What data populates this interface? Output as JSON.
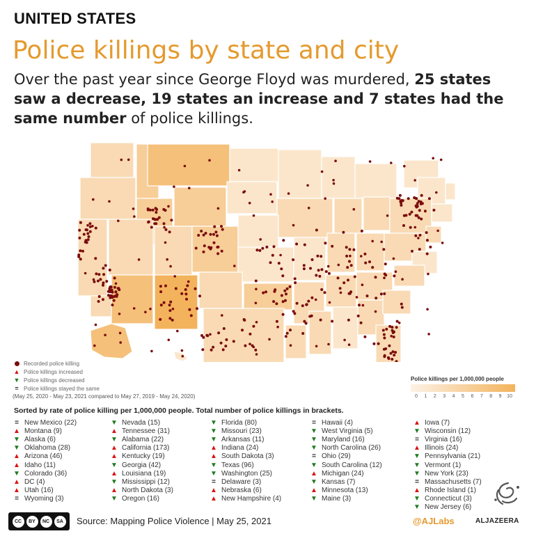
{
  "header": {
    "eyebrow": "UNITED STATES",
    "title": "Police killings by state and city",
    "subtitle_pre": "Over the past year since George Floyd was murdered, ",
    "subtitle_bold1": "25 states saw a decrease, 19 states an increase and 7 states had the same number",
    "subtitle_post": " of police killings."
  },
  "map_legend": {
    "dot_label": "Recorded police killing",
    "up_label": "Police killings increased",
    "down_label": "Police killings decreased",
    "same_label": "Police killings stayed the same",
    "period": "(May 25, 2020 - May 23, 2021 compared to May 27, 2019 - May 24, 2020)"
  },
  "scale": {
    "label": "Police killings per 1,000,000 people",
    "ticks": [
      "0",
      "1",
      "2",
      "3",
      "4",
      "5",
      "6",
      "7",
      "8",
      "9",
      "10"
    ],
    "min_color": "#fdf2e6",
    "max_color": "#f3b35c"
  },
  "sort_note": "Sorted by rate of police killing per 1,000,000 people. Total number of police killings in brackets.",
  "states": [
    [
      {
        "t": "same",
        "label": "New Mexico (22)"
      },
      {
        "t": "up",
        "label": "Montana (9)"
      },
      {
        "t": "down",
        "label": "Alaska (6)"
      },
      {
        "t": "down",
        "label": "Oklahoma (28)"
      },
      {
        "t": "up",
        "label": "Arizona (46)"
      },
      {
        "t": "up",
        "label": "Idaho (11)"
      },
      {
        "t": "down",
        "label": "Colorado (36)"
      },
      {
        "t": "up",
        "label": "DC (4)"
      },
      {
        "t": "up",
        "label": "Utah (16)"
      },
      {
        "t": "same",
        "label": "Wyoming (3)"
      }
    ],
    [
      {
        "t": "down",
        "label": "Nevada (15)"
      },
      {
        "t": "up",
        "label": "Tennessee (31)"
      },
      {
        "t": "down",
        "label": "Alabama (22)"
      },
      {
        "t": "up",
        "label": "California (173)"
      },
      {
        "t": "up",
        "label": "Kentucky (19)"
      },
      {
        "t": "down",
        "label": "Georgia (42)"
      },
      {
        "t": "up",
        "label": "Louisiana (19)"
      },
      {
        "t": "down",
        "label": "Mississippi (12)"
      },
      {
        "t": "up",
        "label": "North Dakota (3)"
      },
      {
        "t": "down",
        "label": "Oregon (16)"
      }
    ],
    [
      {
        "t": "down",
        "label": "Florida (80)"
      },
      {
        "t": "down",
        "label": "Missouri (23)"
      },
      {
        "t": "down",
        "label": "Arkansas (11)"
      },
      {
        "t": "up",
        "label": "Indiana (24)"
      },
      {
        "t": "up",
        "label": "South Dakota (3)"
      },
      {
        "t": "down",
        "label": "Texas (96)"
      },
      {
        "t": "down",
        "label": "Washington (25)"
      },
      {
        "t": "same",
        "label": "Delaware (3)"
      },
      {
        "t": "up",
        "label": "Nebraska (6)"
      },
      {
        "t": "up",
        "label": "New Hampshire (4)"
      }
    ],
    [
      {
        "t": "same",
        "label": "Hawaii (4)"
      },
      {
        "t": "down",
        "label": "West Virginia (5)"
      },
      {
        "t": "down",
        "label": "Maryland (16)"
      },
      {
        "t": "down",
        "label": "North Carolina (26)"
      },
      {
        "t": "same",
        "label": "Ohio (29)"
      },
      {
        "t": "down",
        "label": "South Carolina (12)"
      },
      {
        "t": "up",
        "label": "Michigan (24)"
      },
      {
        "t": "down",
        "label": "Kansas (7)"
      },
      {
        "t": "up",
        "label": "Minnesota (13)"
      },
      {
        "t": "down",
        "label": "Maine (3)"
      }
    ],
    [
      {
        "t": "up",
        "label": "Iowa (7)"
      },
      {
        "t": "down",
        "label": "Wisconsin (12)"
      },
      {
        "t": "same",
        "label": "Virginia (16)"
      },
      {
        "t": "up",
        "label": "Illinois (24)"
      },
      {
        "t": "down",
        "label": "Pennsylvania (21)"
      },
      {
        "t": "down",
        "label": "Vermont (1)"
      },
      {
        "t": "down",
        "label": "New York (23)"
      },
      {
        "t": "same",
        "label": "Massachusetts (7)"
      },
      {
        "t": "up",
        "label": "Rhode Island (1)"
      },
      {
        "t": "down",
        "label": "Connecticut (3)"
      },
      {
        "t": "down",
        "label": "New Jersey (6)"
      }
    ]
  ],
  "footer": {
    "cc_badges": [
      "CC",
      "BY",
      "NC",
      "SA"
    ],
    "source": "Source: Mapping Police Violence | May 25, 2021",
    "handle": "@AJLabs",
    "brand": "ALJAZEERA"
  },
  "colors": {
    "accent": "#e49a2e",
    "dot": "#7a0c0c",
    "increase": "#dd1111",
    "decrease": "#1f7a1f"
  }
}
